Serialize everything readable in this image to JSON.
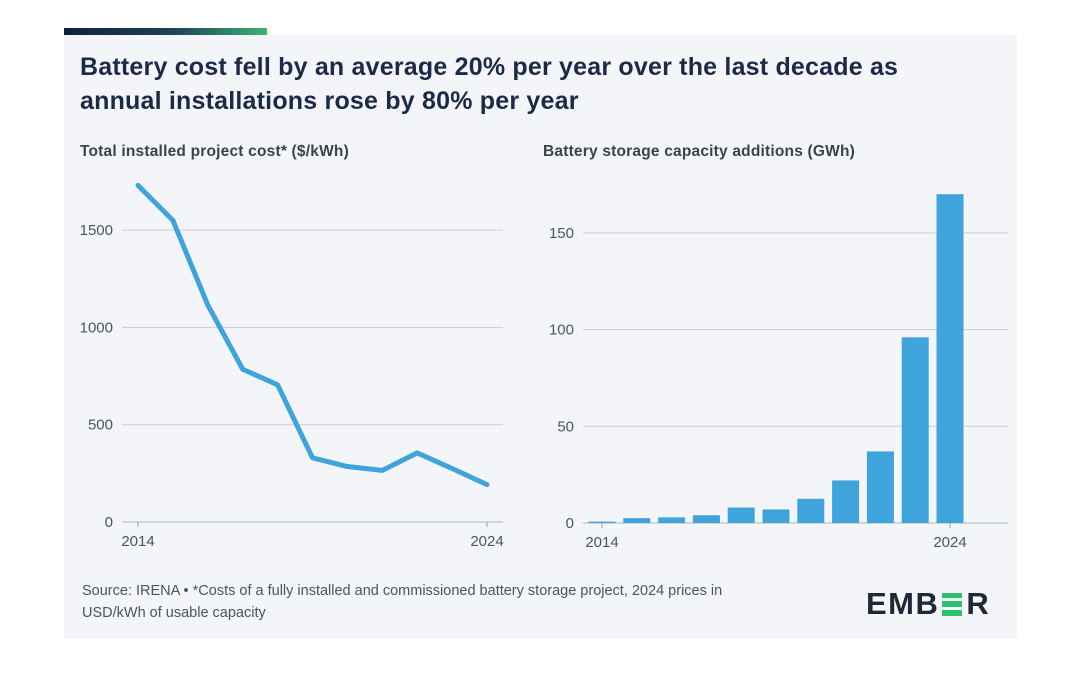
{
  "header": {
    "title_line1": "Battery cost fell by an average 20% per year over the last decade as",
    "title_line2": "annual installations rose by 80% per year"
  },
  "accent_colors": {
    "left": "#101f3c",
    "right": "#3db474"
  },
  "chart_data": [
    {
      "type": "line",
      "title": "Total installed project cost* ($/kWh)",
      "x": [
        2014,
        2015,
        2016,
        2017,
        2018,
        2019,
        2020,
        2021,
        2022,
        2023,
        2024
      ],
      "values": [
        1730,
        1550,
        1115,
        785,
        705,
        330,
        285,
        265,
        355,
        275,
        192
      ],
      "ylim": [
        0,
        1800
      ],
      "yticks": [
        0,
        500,
        1000,
        1500
      ],
      "xticks": [
        2014,
        2024
      ],
      "grid": true,
      "legend": "none",
      "color": "#3fa3dc"
    },
    {
      "type": "bar",
      "title": "Battery storage capacity additions (GWh)",
      "x": [
        2014,
        2015,
        2016,
        2017,
        2018,
        2019,
        2020,
        2021,
        2022,
        2023,
        2024
      ],
      "values": [
        0.7,
        2.5,
        2.9,
        4,
        8,
        7,
        12.5,
        22,
        37,
        96,
        170
      ],
      "ylim": [
        0,
        176
      ],
      "yticks": [
        0,
        50,
        100,
        150
      ],
      "xticks": [
        2014,
        2024
      ],
      "grid": true,
      "legend": "none",
      "color": "#3fa3dc"
    }
  ],
  "footer": {
    "source_line1": "Source: IRENA • *Costs of a fully installed and commissioned battery storage project, 2024 prices in",
    "source_line2": "USD/kWh of usable capacity",
    "logo_prefix": "EMB",
    "logo_suffix": "R",
    "logo_green": "#2bbf6e"
  }
}
